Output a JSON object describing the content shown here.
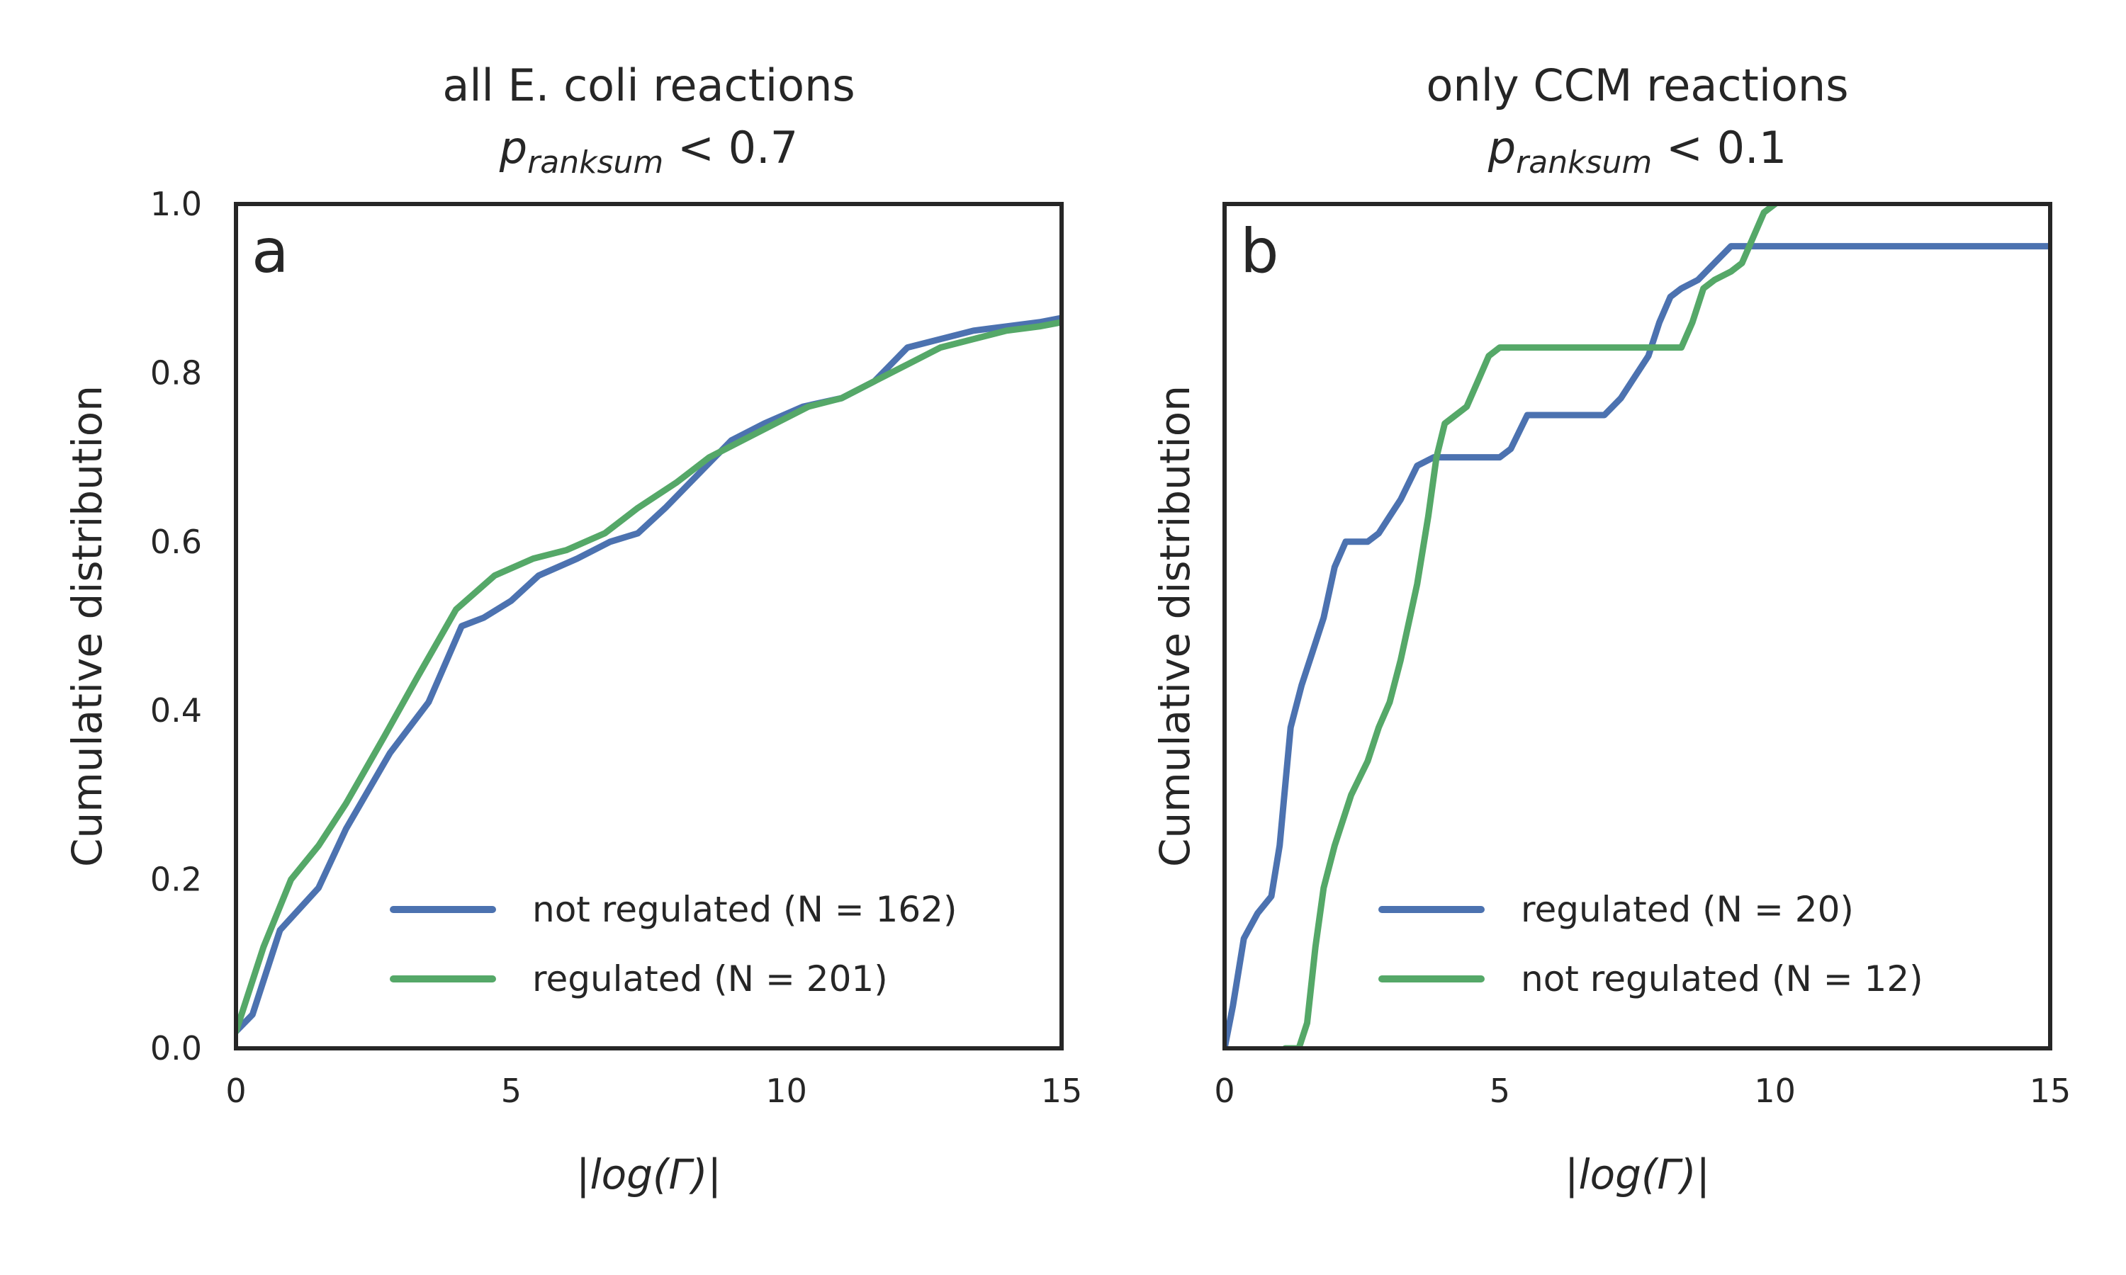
{
  "chart_data": [
    {
      "type": "line",
      "panel_letter": "a",
      "title": "all E. coli reactions",
      "subtitle": {
        "p": "p",
        "sub": "ranksum",
        "rest": " < 0.7"
      },
      "xlabel": "|log(Γ)|",
      "ylabel": "Cumulative distribution",
      "xlim": [
        0,
        15
      ],
      "ylim": [
        0,
        1
      ],
      "xticks": [
        "0",
        "5",
        "10",
        "15"
      ],
      "yticks": [
        "0.0",
        "0.2",
        "0.4",
        "0.6",
        "0.8",
        "1.0"
      ],
      "show_yticks": true,
      "legend_position": "lower-right",
      "series": [
        {
          "name": "not regulated (N = 162)",
          "color": "#4c72b0",
          "x": [
            0,
            0.3,
            0.8,
            1.5,
            2.0,
            2.8,
            3.5,
            4.1,
            4.5,
            5.0,
            5.5,
            6.2,
            6.8,
            7.3,
            7.8,
            8.4,
            9.0,
            9.6,
            10.3,
            11.0,
            11.6,
            12.2,
            12.8,
            13.4,
            14.0,
            14.6,
            15.0
          ],
          "y": [
            0.02,
            0.04,
            0.14,
            0.19,
            0.26,
            0.35,
            0.41,
            0.5,
            0.51,
            0.53,
            0.56,
            0.58,
            0.6,
            0.61,
            0.64,
            0.68,
            0.72,
            0.74,
            0.76,
            0.77,
            0.79,
            0.83,
            0.84,
            0.85,
            0.855,
            0.86,
            0.865
          ]
        },
        {
          "name": "regulated (N = 201)",
          "color": "#55a868",
          "x": [
            0,
            0.5,
            1.0,
            1.5,
            2.0,
            2.7,
            3.3,
            4.0,
            4.7,
            5.4,
            6.0,
            6.7,
            7.3,
            8.0,
            8.6,
            9.2,
            9.8,
            10.4,
            11.0,
            11.6,
            12.2,
            12.8,
            13.4,
            14.0,
            14.6,
            15.0
          ],
          "y": [
            0.02,
            0.12,
            0.2,
            0.24,
            0.29,
            0.37,
            0.44,
            0.52,
            0.56,
            0.58,
            0.59,
            0.61,
            0.64,
            0.67,
            0.7,
            0.72,
            0.74,
            0.76,
            0.77,
            0.79,
            0.81,
            0.83,
            0.84,
            0.85,
            0.855,
            0.86
          ]
        }
      ]
    },
    {
      "type": "line",
      "panel_letter": "b",
      "title": "only CCM reactions",
      "subtitle": {
        "p": "p",
        "sub": "ranksum",
        "rest": " < 0.1"
      },
      "xlabel": "|log(Γ)|",
      "ylabel": "Cumulative distribution",
      "xlim": [
        0,
        15
      ],
      "ylim": [
        0,
        1
      ],
      "xticks": [
        "0",
        "5",
        "10",
        "15"
      ],
      "yticks": [],
      "show_yticks": false,
      "legend_position": "lower-right",
      "series": [
        {
          "name": "regulated (N = 20)",
          "color": "#4c72b0",
          "x": [
            0,
            0.15,
            0.35,
            0.6,
            0.85,
            1.0,
            1.2,
            1.4,
            1.6,
            1.8,
            2.0,
            2.2,
            2.4,
            2.6,
            2.8,
            3.0,
            3.2,
            3.5,
            3.8,
            4.1,
            4.4,
            4.7,
            5.0,
            5.2,
            5.5,
            5.9,
            6.4,
            6.9,
            7.2,
            7.4,
            7.7,
            7.9,
            8.1,
            8.3,
            8.6,
            8.9,
            9.2,
            9.5,
            10.0,
            12.0,
            15.0
          ],
          "y": [
            0,
            0.05,
            0.13,
            0.16,
            0.18,
            0.24,
            0.38,
            0.43,
            0.47,
            0.51,
            0.57,
            0.6,
            0.6,
            0.6,
            0.61,
            0.63,
            0.65,
            0.69,
            0.7,
            0.7,
            0.7,
            0.7,
            0.7,
            0.71,
            0.75,
            0.75,
            0.75,
            0.75,
            0.77,
            0.79,
            0.82,
            0.86,
            0.89,
            0.9,
            0.91,
            0.93,
            0.95,
            0.95,
            0.95,
            0.95,
            0.95
          ]
        },
        {
          "name": "not regulated (N = 12)",
          "color": "#55a868",
          "x": [
            1.1,
            1.35,
            1.5,
            1.65,
            1.8,
            2.0,
            2.3,
            2.6,
            2.8,
            3.0,
            3.2,
            3.5,
            3.7,
            3.85,
            4.0,
            4.2,
            4.4,
            4.6,
            4.8,
            5.0,
            5.3,
            6.0,
            7.0,
            8.0,
            8.3,
            8.5,
            8.7,
            8.9,
            9.2,
            9.4,
            9.6,
            9.8,
            10.0,
            10.2
          ],
          "y": [
            0,
            0,
            0.03,
            0.12,
            0.19,
            0.24,
            0.3,
            0.34,
            0.38,
            0.41,
            0.46,
            0.55,
            0.63,
            0.7,
            0.74,
            0.75,
            0.76,
            0.79,
            0.82,
            0.83,
            0.83,
            0.83,
            0.83,
            0.83,
            0.83,
            0.86,
            0.9,
            0.91,
            0.92,
            0.93,
            0.96,
            0.99,
            1.0,
            1.01
          ]
        }
      ]
    }
  ]
}
